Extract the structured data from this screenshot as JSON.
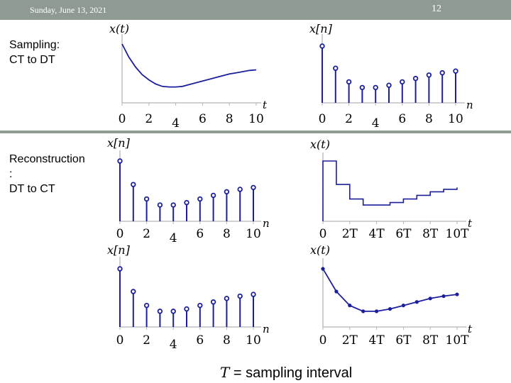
{
  "header": {
    "date": "Sunday, June 13, 2021",
    "page_number": "12"
  },
  "sections": [
    {
      "title": "Sampling:\nCT to DT"
    },
    {
      "title": "Reconstruction\n:\nDT to CT"
    }
  ],
  "caption": {
    "symbol": "T",
    "text": " = sampling interval"
  },
  "colors": {
    "curve": "#1c1f9c",
    "topbar": "#8f9a92"
  },
  "chart_data": [
    {
      "id": "ct",
      "type": "line",
      "ylabel": "x(t)",
      "xlabel": "t",
      "x_ticks": [
        "0",
        "2",
        "4",
        "6",
        "8",
        "10"
      ],
      "x": [
        0,
        0.5,
        1,
        1.5,
        2,
        2.5,
        3,
        3.5,
        4,
        4.5,
        5,
        5.5,
        6,
        6.5,
        7,
        7.5,
        8,
        8.5,
        9,
        9.5,
        10
      ],
      "y": [
        1.0,
        0.78,
        0.61,
        0.48,
        0.39,
        0.32,
        0.28,
        0.27,
        0.27,
        0.28,
        0.31,
        0.34,
        0.37,
        0.4,
        0.43,
        0.46,
        0.49,
        0.51,
        0.53,
        0.55,
        0.56
      ]
    },
    {
      "id": "dt1",
      "type": "stem",
      "ylabel": "x[n]",
      "xlabel": "n",
      "x_ticks": [
        "0",
        "2",
        "4",
        "6",
        "8",
        "10"
      ],
      "x": [
        0,
        1,
        2,
        3,
        4,
        5,
        6,
        7,
        8,
        9,
        10
      ],
      "y": [
        1.0,
        0.61,
        0.37,
        0.27,
        0.27,
        0.31,
        0.37,
        0.43,
        0.49,
        0.53,
        0.56
      ]
    },
    {
      "id": "dt2",
      "type": "stem",
      "ylabel": "x[n]",
      "xlabel": "n",
      "x_ticks": [
        "0",
        "2",
        "4",
        "6",
        "8",
        "10"
      ],
      "x": [
        0,
        1,
        2,
        3,
        4,
        5,
        6,
        7,
        8,
        9,
        10
      ],
      "y": [
        1.0,
        0.61,
        0.37,
        0.27,
        0.27,
        0.31,
        0.37,
        0.43,
        0.49,
        0.53,
        0.56
      ]
    },
    {
      "id": "zoh",
      "type": "step",
      "ylabel": "x(t)",
      "xlabel": "t",
      "x_ticks": [
        "0",
        "2T",
        "4T",
        "6T",
        "8T",
        "10T"
      ],
      "x": [
        0,
        1,
        2,
        3,
        4,
        5,
        6,
        7,
        8,
        9,
        10
      ],
      "y": [
        1.0,
        0.61,
        0.37,
        0.27,
        0.27,
        0.31,
        0.37,
        0.43,
        0.49,
        0.53,
        0.56
      ]
    },
    {
      "id": "lin",
      "type": "line",
      "ylabel": "x(t)",
      "xlabel": "t",
      "x_ticks": [
        "0",
        "2T",
        "4T",
        "6T",
        "8T",
        "10T"
      ],
      "x": [
        0,
        1,
        2,
        3,
        4,
        5,
        6,
        7,
        8,
        9,
        10
      ],
      "y": [
        1.0,
        0.61,
        0.37,
        0.27,
        0.27,
        0.31,
        0.37,
        0.43,
        0.49,
        0.53,
        0.56
      ]
    },
    {
      "id": "dt3",
      "type": "stem",
      "ylabel": "x[n]",
      "xlabel": "n",
      "x_ticks": [
        "0",
        "2",
        "4",
        "6",
        "8",
        "10"
      ],
      "x": [
        0,
        1,
        2,
        3,
        4,
        5,
        6,
        7,
        8,
        9,
        10
      ],
      "y": [
        1.0,
        0.61,
        0.37,
        0.27,
        0.27,
        0.31,
        0.37,
        0.43,
        0.49,
        0.53,
        0.56
      ]
    }
  ]
}
